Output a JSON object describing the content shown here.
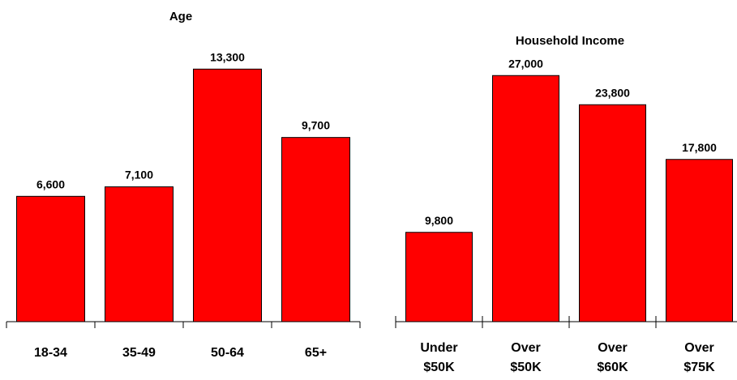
{
  "chart_data": [
    {
      "type": "bar",
      "title": "Age",
      "categories": [
        "18-34",
        "35-49",
        "50-64",
        "65+"
      ],
      "values": [
        6600,
        7100,
        13300,
        9700
      ],
      "value_labels": [
        "6,600",
        "7,100",
        "13,300",
        "9,700"
      ],
      "ylim": [
        0,
        16000
      ],
      "grid": false,
      "bar_color": "#ff0000"
    },
    {
      "type": "bar",
      "title": "Household Income",
      "categories": [
        [
          "Under",
          "$50K"
        ],
        [
          "Over",
          "$50K"
        ],
        [
          "Over",
          "$60K"
        ],
        [
          "Over",
          "$75K"
        ]
      ],
      "values": [
        9800,
        27000,
        23800,
        17800
      ],
      "value_labels": [
        "9,800",
        "27,000",
        "23,800",
        "17,800"
      ],
      "ylim": [
        0,
        32000
      ],
      "grid": false,
      "bar_color": "#ff0000"
    }
  ]
}
